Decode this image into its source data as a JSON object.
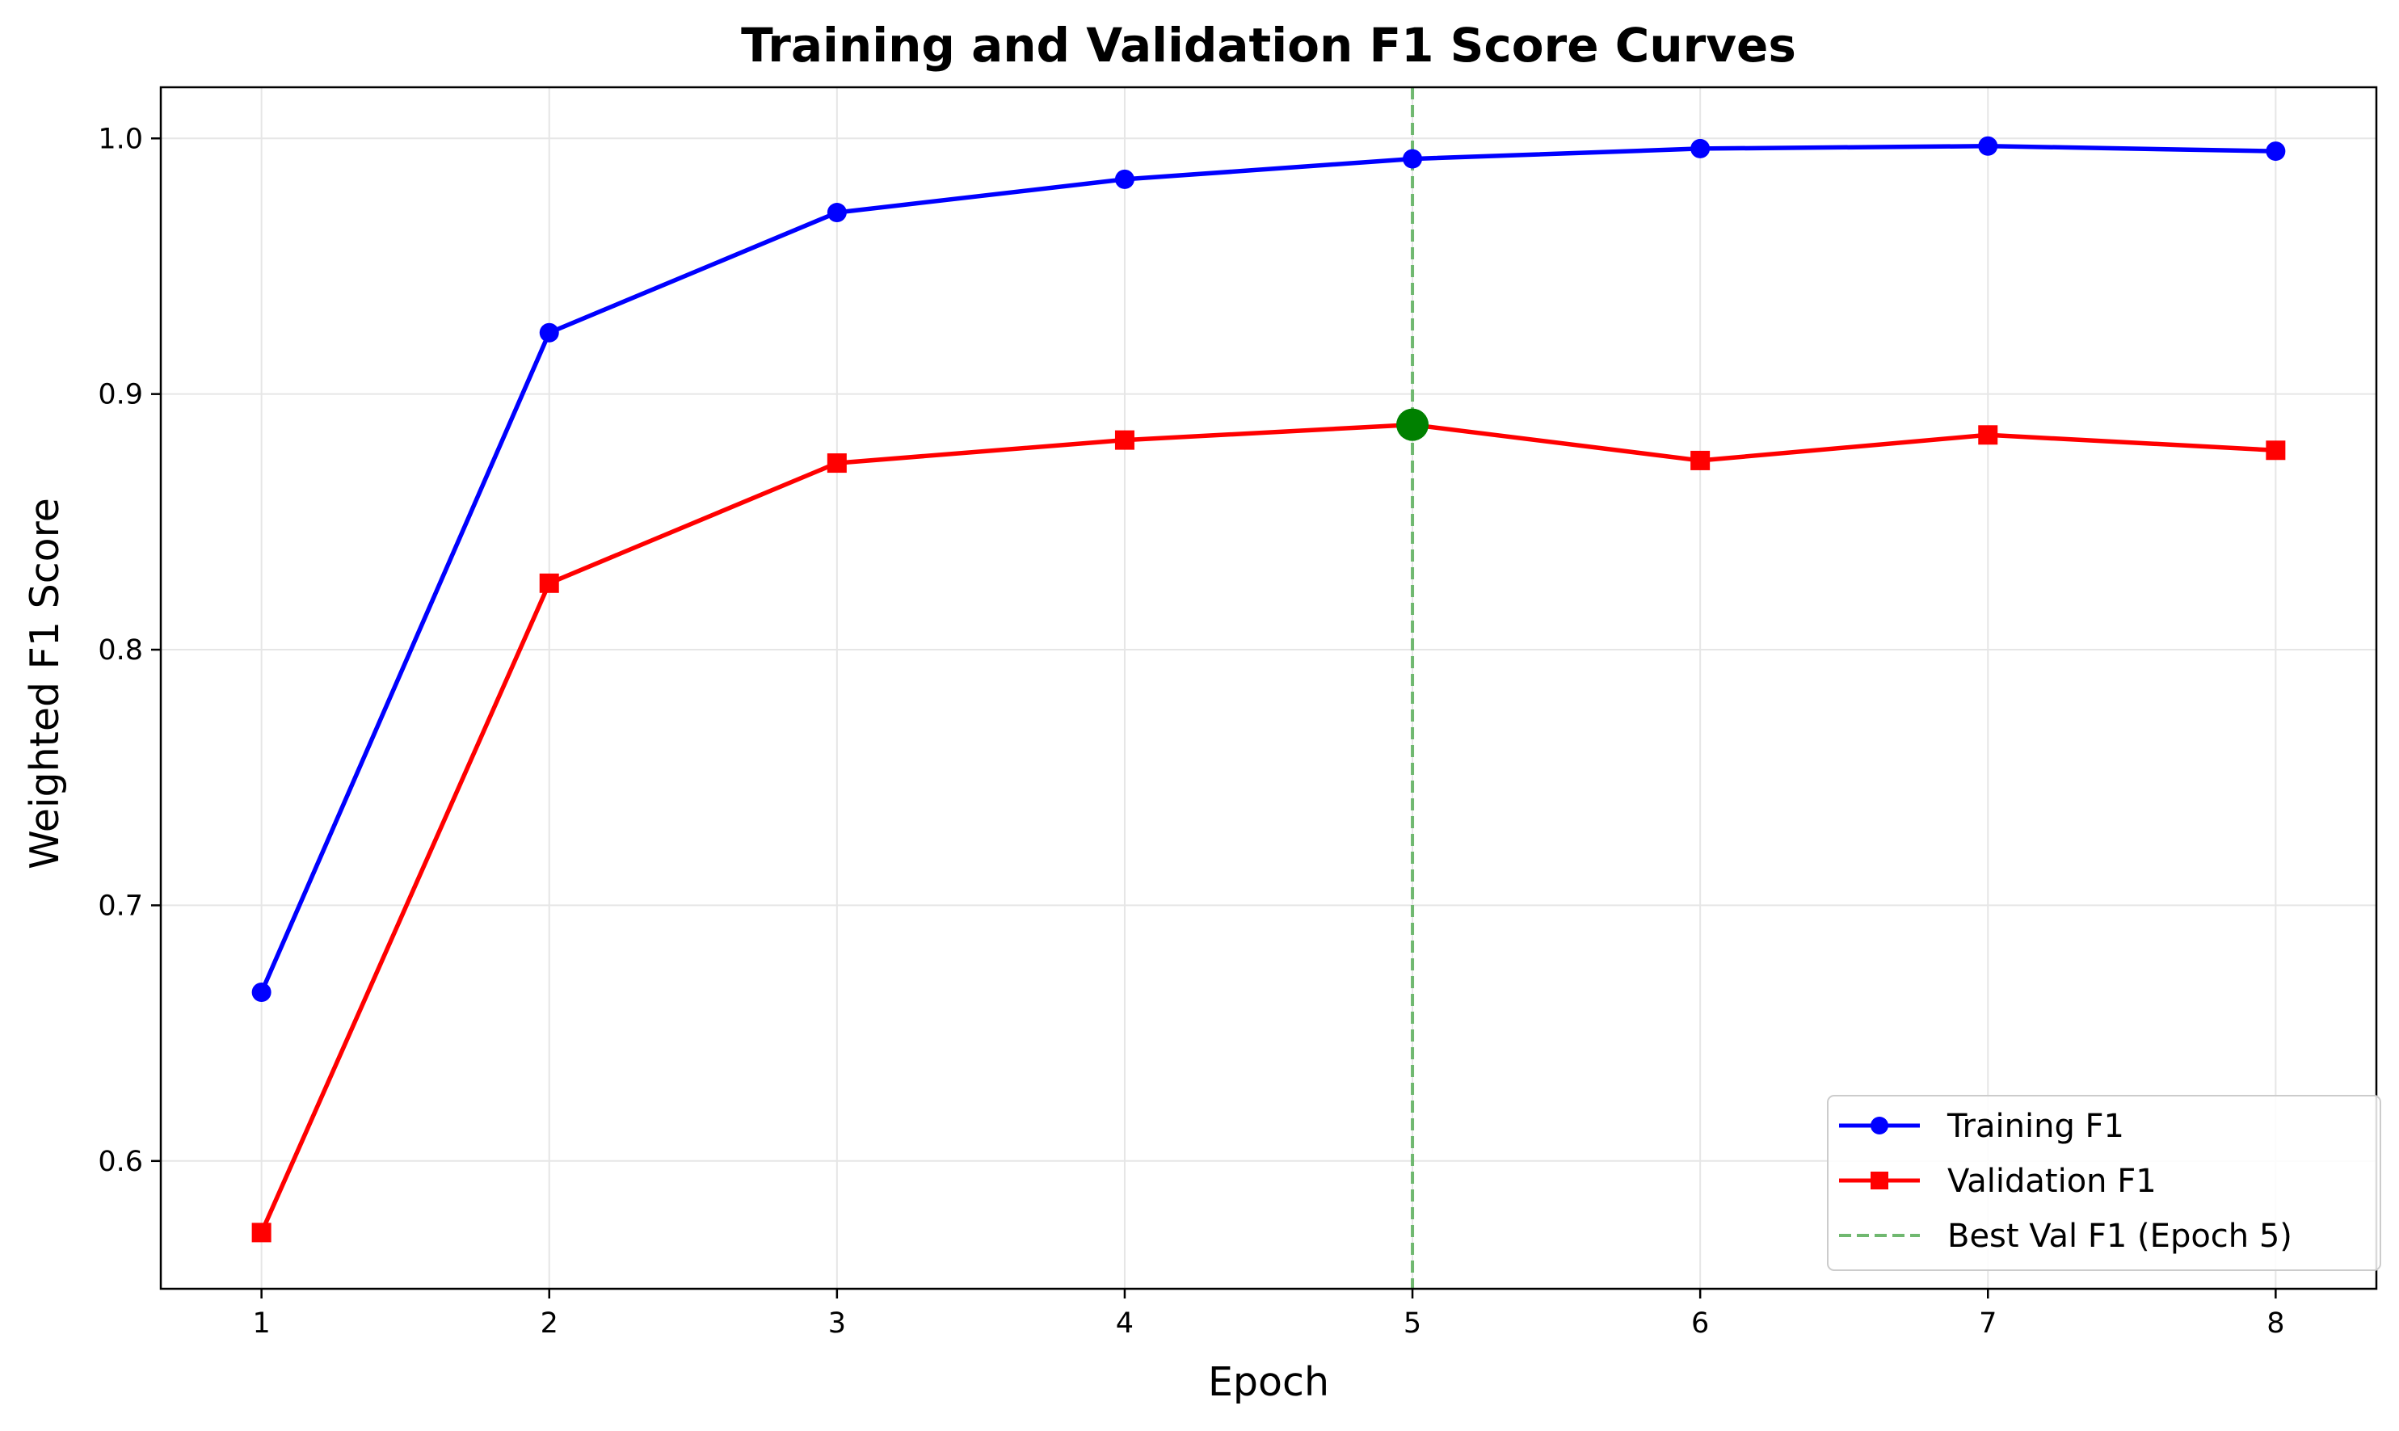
{
  "chart_data": {
    "type": "line",
    "title": "Training and Validation F1 Score Curves",
    "xlabel": "Epoch",
    "ylabel": "Weighted F1 Score",
    "x": [
      1,
      2,
      3,
      4,
      5,
      6,
      7,
      8
    ],
    "xlim": [
      0.65,
      8.35
    ],
    "ylim": [
      0.55,
      1.02
    ],
    "yticks": [
      "0.6",
      "0.7",
      "0.8",
      "0.9",
      "1.0"
    ],
    "xticks": [
      "1",
      "2",
      "3",
      "4",
      "5",
      "6",
      "7",
      "8"
    ],
    "grid": true,
    "legend_position": "lower-right",
    "series": [
      {
        "name": "Training F1",
        "color": "#0000ff",
        "marker": "circle",
        "values": [
          0.666,
          0.924,
          0.971,
          0.984,
          0.992,
          0.996,
          0.997,
          0.995
        ]
      },
      {
        "name": "Validation F1",
        "color": "#ff0000",
        "marker": "square",
        "values": [
          0.572,
          0.826,
          0.873,
          0.882,
          0.888,
          0.874,
          0.884,
          0.878
        ]
      }
    ],
    "best_epoch_line": {
      "name": "Best Val F1 (Epoch 5)",
      "x": 5,
      "color": "#70b870",
      "style": "dashed"
    },
    "best_point": {
      "x": 5,
      "y": 0.888,
      "color": "#008000"
    }
  }
}
